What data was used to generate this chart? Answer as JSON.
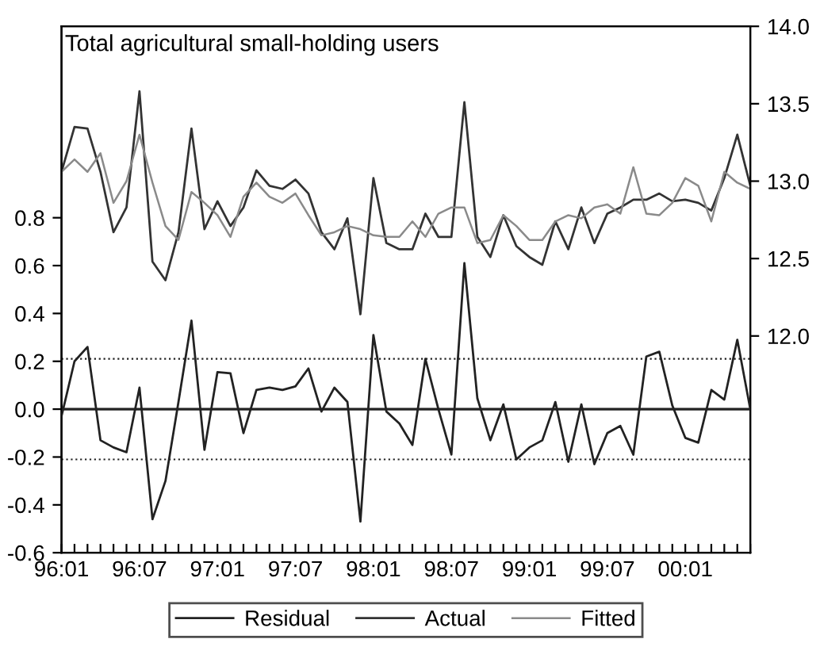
{
  "chart_data": {
    "type": "line",
    "title": "Total agricultural small-holding users",
    "categories": [
      "96:01",
      null,
      null,
      null,
      null,
      null,
      "96:07",
      null,
      null,
      null,
      null,
      null,
      "97:01",
      null,
      null,
      null,
      null,
      null,
      "97:07",
      null,
      null,
      null,
      null,
      null,
      "98:01",
      null,
      null,
      null,
      null,
      null,
      "98:07",
      null,
      null,
      null,
      null,
      null,
      "99:01",
      null,
      null,
      null,
      null,
      null,
      "99:07",
      null,
      null,
      null,
      null,
      null,
      "00:01",
      null,
      null,
      null,
      null,
      null
    ],
    "series": [
      {
        "name": "Residual",
        "color": "#222222",
        "axis": "y",
        "values": [
          -0.03,
          0.2,
          0.26,
          -0.13,
          -0.16,
          -0.18,
          0.09,
          -0.46,
          -0.3,
          0.03,
          0.37,
          -0.17,
          0.155,
          0.15,
          -0.1,
          0.08,
          0.09,
          0.08,
          0.095,
          0.17,
          -0.01,
          0.09,
          0.03,
          -0.47,
          0.31,
          -0.01,
          -0.06,
          -0.15,
          0.21,
          0.0,
          -0.19,
          0.61,
          0.045,
          -0.13,
          0.02,
          -0.21,
          -0.16,
          -0.13,
          0.03,
          -0.22,
          0.02,
          -0.23,
          -0.1,
          -0.07,
          -0.19,
          0.22,
          0.24,
          0.015,
          -0.12,
          -0.14,
          0.08,
          0.04,
          0.29,
          0.0
        ]
      },
      {
        "name": "Actual",
        "color": "#333333",
        "axis": "y2",
        "values": [
          13.06,
          13.35,
          13.34,
          13.06,
          12.67,
          12.83,
          13.58,
          12.48,
          12.36,
          12.67,
          13.34,
          12.69,
          12.87,
          12.71,
          12.83,
          13.07,
          12.97,
          12.95,
          13.01,
          12.92,
          12.67,
          12.56,
          12.76,
          12.14,
          13.02,
          12.6,
          12.56,
          12.56,
          12.79,
          12.64,
          12.64,
          13.51,
          12.64,
          12.51,
          12.78,
          12.58,
          12.51,
          12.46,
          12.74,
          12.56,
          12.83,
          12.6,
          12.79,
          12.83,
          12.88,
          12.88,
          12.92,
          12.87,
          12.88,
          12.86,
          12.81,
          13.02,
          13.3,
          12.97
        ]
      },
      {
        "name": "Fitted",
        "color": "#8a8a8a",
        "axis": "y2",
        "values": [
          13.06,
          13.14,
          13.06,
          13.18,
          12.86,
          13.0,
          13.3,
          12.99,
          12.71,
          12.62,
          12.93,
          12.86,
          12.78,
          12.64,
          12.9,
          12.99,
          12.9,
          12.86,
          12.92,
          12.78,
          12.65,
          12.67,
          12.71,
          12.69,
          12.65,
          12.64,
          12.64,
          12.74,
          12.64,
          12.79,
          12.83,
          12.83,
          12.6,
          12.62,
          12.78,
          12.71,
          12.62,
          12.62,
          12.74,
          12.78,
          12.76,
          12.83,
          12.85,
          12.79,
          13.09,
          12.79,
          12.78,
          12.86,
          13.02,
          12.97,
          12.74,
          13.06,
          12.99,
          12.95
        ]
      }
    ],
    "ylim": [
      -0.6,
      1.6
    ],
    "yticks": [
      -0.6,
      -0.4,
      -0.2,
      {
        "value": 0,
        "label": "0.0"
      },
      0.2,
      0.4,
      0.6,
      0.8
    ],
    "y2lim": [
      10.6,
      14.0
    ],
    "y2ticks": [
      {
        "value": 12,
        "label": "12.0"
      },
      12.5,
      {
        "value": 13,
        "label": "13.0"
      },
      13.5,
      {
        "value": 14,
        "label": "14.0"
      }
    ],
    "ref_lines": [
      {
        "axis": "y",
        "value": 0.21,
        "line_style": "dotted"
      },
      {
        "axis": "y",
        "value": 0.0,
        "line_style": "solid"
      },
      {
        "axis": "y",
        "value": -0.21,
        "line_style": "dotted"
      }
    ],
    "grid": false,
    "legend": "bottom",
    "marker": "none",
    "line_style": "solid"
  }
}
